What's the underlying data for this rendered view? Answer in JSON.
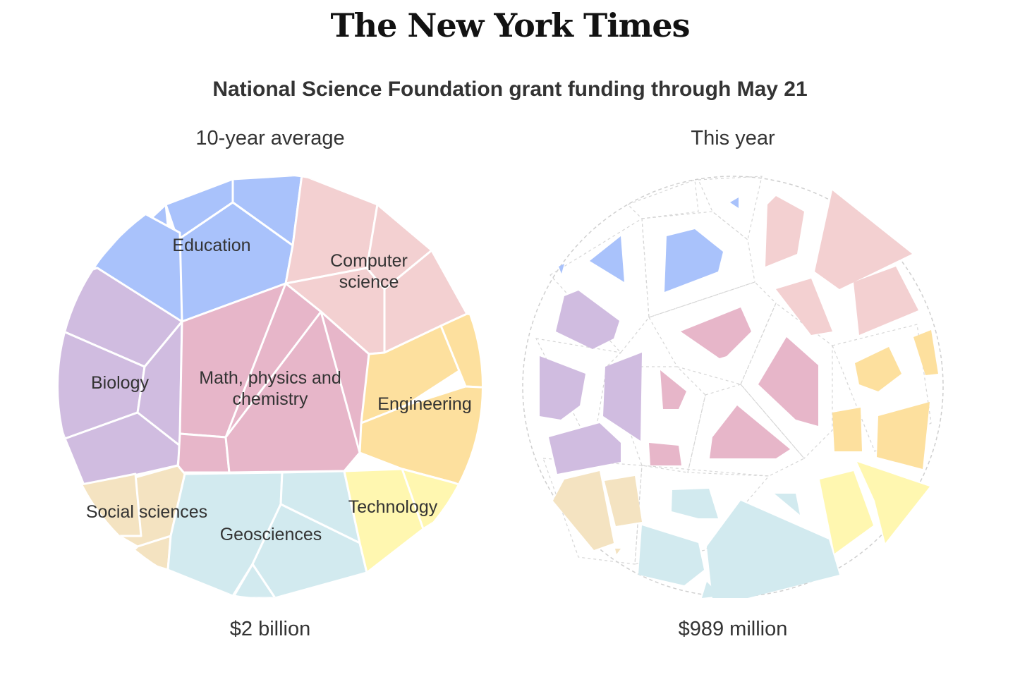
{
  "masthead": "The New York Times",
  "chart_data": {
    "type": "voronoi-treemap",
    "title": "National Science Foundation grant funding through May 21",
    "panels": [
      {
        "title": "10-year average",
        "total": "$2 billion",
        "categories": [
          {
            "name": "Education",
            "color": "#a9c2fb"
          },
          {
            "name": "Computer science",
            "color": "#f3d0d1"
          },
          {
            "name": "Biology",
            "color": "#d0bce0"
          },
          {
            "name": "Math, physics and chemistry",
            "color": "#e7b6c9"
          },
          {
            "name": "Engineering",
            "color": "#fde09e"
          },
          {
            "name": "Social sciences",
            "color": "#f4e3c1"
          },
          {
            "name": "Geosciences",
            "color": "#d2eaef"
          },
          {
            "name": "Technology",
            "color": "#fff7b0"
          }
        ]
      },
      {
        "title": "This year",
        "total": "$989 million",
        "categories": [
          {
            "name": "Education",
            "color": "#a9c2fb"
          },
          {
            "name": "Computer science",
            "color": "#f3d0d1"
          },
          {
            "name": "Biology",
            "color": "#d0bce0"
          },
          {
            "name": "Math, physics and chemistry",
            "color": "#e7b6c9"
          },
          {
            "name": "Engineering",
            "color": "#fde09e"
          },
          {
            "name": "Social sciences",
            "color": "#f4e3c1"
          },
          {
            "name": "Geosciences",
            "color": "#d2eaef"
          },
          {
            "name": "Technology",
            "color": "#fff7b0"
          }
        ]
      }
    ]
  }
}
